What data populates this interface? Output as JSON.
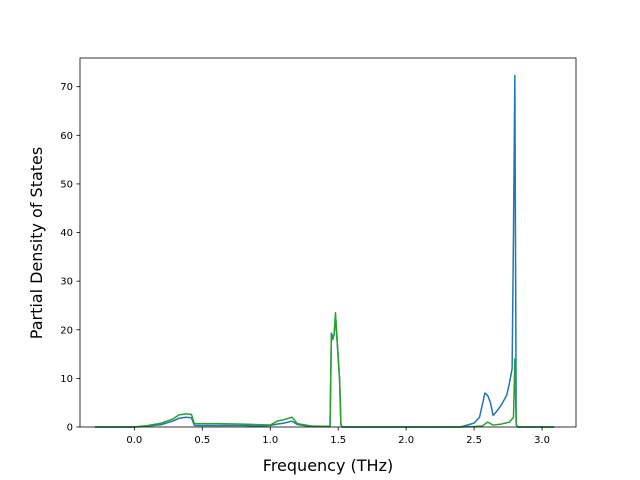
{
  "chart_data": {
    "type": "line",
    "title": "",
    "xlabel": "Frequency (THz)",
    "ylabel": "Partial Density of States",
    "xlim": [
      -0.4,
      3.25
    ],
    "ylim": [
      0,
      75.9
    ],
    "xticks": [
      0.0,
      0.5,
      1.0,
      1.5,
      2.0,
      2.5,
      3.0
    ],
    "xtick_labels": [
      "0.0",
      "0.5",
      "1.0",
      "1.5",
      "2.0",
      "2.5",
      "3.0"
    ],
    "yticks": [
      0,
      10,
      20,
      30,
      40,
      50,
      60,
      70
    ],
    "ytick_labels": [
      "0",
      "10",
      "20",
      "30",
      "40",
      "50",
      "60",
      "70"
    ],
    "grid": false,
    "legend": "none",
    "series": [
      {
        "color": "#1f77b4",
        "x": [
          -0.29,
          0.0,
          0.1,
          0.2,
          0.28,
          0.33,
          0.38,
          0.42,
          0.44,
          0.45,
          0.6,
          0.8,
          0.9,
          1.0,
          1.05,
          1.1,
          1.16,
          1.2,
          1.3,
          1.44,
          1.45,
          1.46,
          1.47,
          1.48,
          1.49,
          1.5,
          1.51,
          1.52,
          1.53,
          1.54,
          1.6,
          2.0,
          2.4,
          2.5,
          2.54,
          2.56,
          2.58,
          2.6,
          2.62,
          2.64,
          2.66,
          2.7,
          2.74,
          2.76,
          2.78,
          2.79,
          2.8,
          2.81,
          2.82,
          2.9,
          3.09
        ],
        "y": [
          0,
          0,
          0.2,
          0.5,
          1.2,
          1.8,
          2.0,
          1.9,
          0.4,
          0.3,
          0.3,
          0.3,
          0.2,
          0.3,
          0.6,
          0.8,
          1.2,
          0.5,
          0.1,
          0.1,
          19.3,
          18.5,
          19.0,
          23.0,
          19.0,
          14.0,
          10.0,
          0.5,
          0,
          0,
          0,
          0,
          0,
          0.8,
          2.0,
          4.5,
          7.0,
          6.5,
          5.0,
          2.4,
          3.0,
          4.5,
          6.5,
          9.0,
          12.0,
          40.0,
          72.3,
          0.5,
          0,
          0,
          0
        ]
      },
      {
        "color": "#2ca02c",
        "x": [
          -0.29,
          0.0,
          0.1,
          0.2,
          0.28,
          0.33,
          0.38,
          0.42,
          0.44,
          0.45,
          0.6,
          0.8,
          0.9,
          1.0,
          1.05,
          1.1,
          1.16,
          1.2,
          1.3,
          1.44,
          1.45,
          1.46,
          1.47,
          1.48,
          1.49,
          1.5,
          1.51,
          1.52,
          1.53,
          1.54,
          1.6,
          2.0,
          2.4,
          2.5,
          2.56,
          2.6,
          2.64,
          2.7,
          2.76,
          2.79,
          2.8,
          2.81,
          2.82,
          2.9,
          3.09
        ],
        "y": [
          0,
          0,
          0.3,
          0.8,
          1.6,
          2.5,
          2.7,
          2.6,
          0.8,
          0.7,
          0.7,
          0.6,
          0.5,
          0.4,
          1.2,
          1.5,
          2.0,
          0.7,
          0.2,
          0.1,
          19.0,
          18.0,
          19.0,
          23.5,
          18.5,
          14.5,
          10.0,
          0.5,
          0,
          0,
          0,
          0,
          0,
          0.1,
          0.2,
          1.0,
          0.4,
          0.6,
          1.0,
          2.0,
          14.0,
          0.5,
          0,
          0,
          0
        ]
      }
    ]
  }
}
